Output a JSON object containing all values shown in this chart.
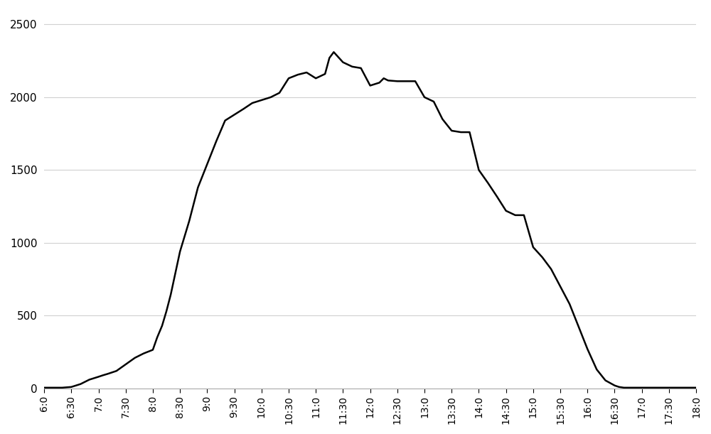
{
  "x_labels": [
    "6:0",
    "6:30",
    "7:0",
    "7:30",
    "8:0",
    "8:30",
    "9:0",
    "9:30",
    "10:0",
    "10:30",
    "11:0",
    "11:30",
    "12:0",
    "12:30",
    "13:0",
    "13:30",
    "14:0",
    "14:30",
    "15:0",
    "15:30",
    "16:0",
    "16:30",
    "17:0",
    "17:30",
    "18:0"
  ],
  "times_hours": [
    6.0,
    6.08,
    6.17,
    6.25,
    6.33,
    6.5,
    6.67,
    6.83,
    7.0,
    7.08,
    7.17,
    7.25,
    7.33,
    7.5,
    7.67,
    7.83,
    8.0,
    8.08,
    8.17,
    8.25,
    8.33,
    8.5,
    8.67,
    8.83,
    9.0,
    9.17,
    9.33,
    9.5,
    9.67,
    9.83,
    10.0,
    10.17,
    10.33,
    10.5,
    10.67,
    10.83,
    11.0,
    11.17,
    11.25,
    11.33,
    11.5,
    11.67,
    11.83,
    12.0,
    12.17,
    12.25,
    12.33,
    12.5,
    12.67,
    12.83,
    13.0,
    13.17,
    13.33,
    13.5,
    13.67,
    13.83,
    14.0,
    14.17,
    14.33,
    14.5,
    14.67,
    14.83,
    15.0,
    15.17,
    15.33,
    15.5,
    15.67,
    15.83,
    16.0,
    16.17,
    16.33,
    16.5,
    16.58,
    16.67,
    17.0,
    17.33,
    17.5,
    17.67,
    17.83,
    18.0
  ],
  "values": [
    5,
    5,
    5,
    5,
    5,
    10,
    30,
    60,
    80,
    90,
    100,
    110,
    120,
    165,
    210,
    240,
    265,
    350,
    430,
    530,
    645,
    940,
    1150,
    1380,
    1540,
    1700,
    1840,
    1880,
    1920,
    1960,
    1980,
    2000,
    2030,
    2130,
    2155,
    2170,
    2130,
    2160,
    2270,
    2310,
    2240,
    2210,
    2200,
    2080,
    2100,
    2130,
    2115,
    2110,
    2110,
    2110,
    2000,
    1970,
    1850,
    1770,
    1760,
    1760,
    1500,
    1410,
    1320,
    1220,
    1190,
    1190,
    970,
    900,
    820,
    700,
    580,
    430,
    270,
    130,
    55,
    20,
    10,
    5,
    5,
    5,
    5,
    5,
    5,
    5
  ],
  "line_color": "#000000",
  "line_width": 1.8,
  "background_color": "#ffffff",
  "grid_color": "#d0d0d0",
  "ylim": [
    0,
    2600
  ],
  "yticks": [
    0,
    500,
    1000,
    1500,
    2000,
    2500
  ],
  "fig_width": 10.0,
  "fig_height": 6.11
}
